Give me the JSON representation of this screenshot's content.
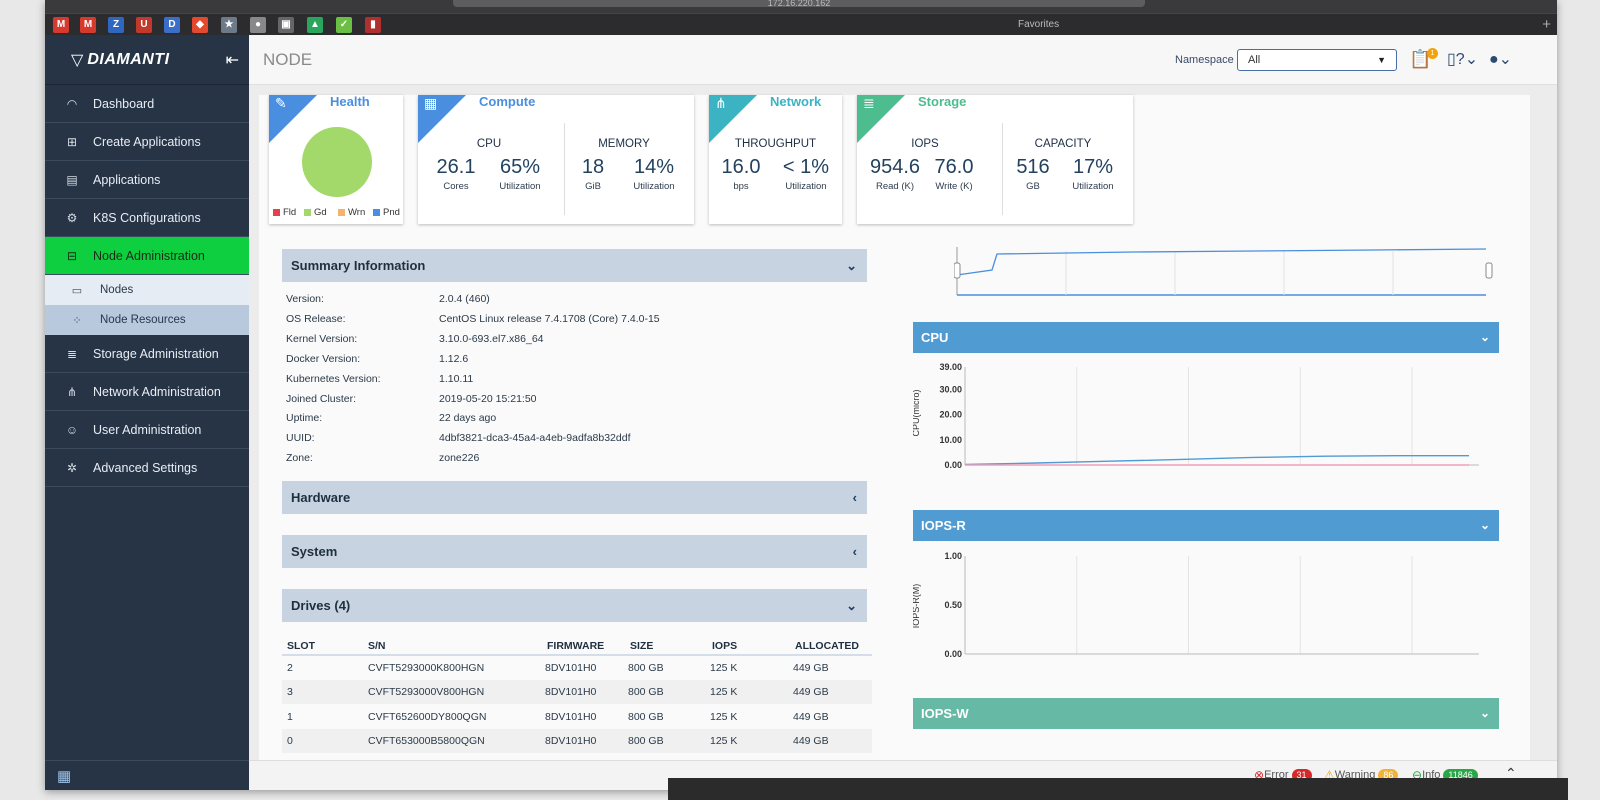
{
  "browser": {
    "url": "172.16.220.162",
    "favorites_label": "Favorites"
  },
  "sidebar": {
    "brand": "DIAMANTI",
    "items": [
      {
        "label": "Dashboard",
        "icon": "dashboard-icon"
      },
      {
        "label": "Create Applications",
        "icon": "plus-square-icon"
      },
      {
        "label": "Applications",
        "icon": "list-icon"
      },
      {
        "label": "K8S Configurations",
        "icon": "gear-icon"
      },
      {
        "label": "Node Administration",
        "icon": "server-icon"
      },
      {
        "label": "Storage Administration",
        "icon": "database-icon"
      },
      {
        "label": "Network Administration",
        "icon": "network-icon"
      },
      {
        "label": "User Administration",
        "icon": "users-icon"
      },
      {
        "label": "Advanced Settings",
        "icon": "cogs-icon"
      }
    ],
    "subitems": [
      {
        "label": "Nodes",
        "icon": "server-icon"
      },
      {
        "label": "Node Resources",
        "icon": "resources-icon"
      }
    ]
  },
  "header": {
    "title": "NODE",
    "namespace_label": "Namespace",
    "namespace_value": "All",
    "notification_count": "1"
  },
  "cards": {
    "health": {
      "title": "Health",
      "legend": [
        "Fld",
        "Gd",
        "Wrn",
        "Pnd"
      ],
      "colors": [
        "#e0434f",
        "#a3d86a",
        "#f4b26a",
        "#4a8fdf"
      ]
    },
    "compute": {
      "title": "Compute",
      "cpu_label": "CPU",
      "cores": "26.1",
      "cores_unit": "Cores",
      "cpu_util": "65%",
      "util_unit": "Utilization",
      "mem_label": "MEMORY",
      "mem": "18",
      "mem_unit": "GiB",
      "mem_util": "14%"
    },
    "network": {
      "title": "Network",
      "tp_label": "THROUGHPUT",
      "tp": "16.0",
      "tp_unit": "bps",
      "tp_util": "< 1%",
      "util_unit": "Utilization"
    },
    "storage": {
      "title": "Storage",
      "iops_label": "IOPS",
      "read": "954.6",
      "read_unit": "Read (K)",
      "write": "76.0",
      "write_unit": "Write (K)",
      "cap_label": "CAPACITY",
      "cap": "516",
      "cap_unit": "GB",
      "cap_util": "17%",
      "util_unit": "Utilization"
    }
  },
  "summary": {
    "title": "Summary Information",
    "rows": [
      {
        "k": "Version:",
        "v": "2.0.4 (460)"
      },
      {
        "k": "OS Release:",
        "v": "CentOS Linux release 7.4.1708 (Core) 7.4.0-15"
      },
      {
        "k": "Kernel Version:",
        "v": "3.10.0-693.el7.x86_64"
      },
      {
        "k": "Docker Version:",
        "v": "1.12.6"
      },
      {
        "k": "Kubernetes Version:",
        "v": "1.10.11"
      },
      {
        "k": "Joined Cluster:",
        "v": "2019-05-20 15:21:50"
      },
      {
        "k": "Uptime:",
        "v": "22 days ago"
      },
      {
        "k": "UUID:",
        "v": "4dbf3821-dca3-45a4-a4eb-9adfa8b32ddf"
      },
      {
        "k": "Zone:",
        "v": "zone226"
      }
    ]
  },
  "sections": {
    "hardware": "Hardware",
    "system": "System",
    "drives": "Drives (4)"
  },
  "drives": {
    "headers": [
      "SLOT",
      "S/N",
      "FIRMWARE",
      "SIZE",
      "IOPS",
      "ALLOCATED"
    ],
    "rows": [
      [
        "2",
        "CVFT5293000K800HGN",
        "8DV101H0",
        "800 GB",
        "125 K",
        "449 GB"
      ],
      [
        "3",
        "CVFT5293000V800HGN",
        "8DV101H0",
        "800 GB",
        "125 K",
        "449 GB"
      ],
      [
        "1",
        "CVFT652600DY800QGN",
        "8DV101H0",
        "800 GB",
        "125 K",
        "449 GB"
      ],
      [
        "0",
        "CVFT653000B5800QGN",
        "8DV101H0",
        "800 GB",
        "125 K",
        "449 GB"
      ]
    ]
  },
  "charts": {
    "cpu": {
      "title": "CPU",
      "ylabel": "CPU(micro)",
      "ticks": [
        "39.00",
        "30.00",
        "20.00",
        "10.00",
        "0.00"
      ],
      "color": "#519bd3"
    },
    "iops_r": {
      "title": "IOPS-R",
      "ylabel": "IOPS-R(M)",
      "ticks": [
        "1.00",
        "0.50",
        "0.00"
      ],
      "color": "#519bd3"
    },
    "iops_w": {
      "title": "IOPS-W",
      "color": "#66b9a5"
    }
  },
  "chart_data": [
    {
      "type": "line",
      "title": "CPU",
      "ylabel": "CPU(micro)",
      "ylim": [
        0,
        39
      ],
      "series": [
        {
          "values": [
            0.2,
            0.8,
            1.5,
            2.2,
            3.0,
            3.5,
            3.7,
            3.7
          ]
        },
        {
          "values": [
            0,
            0,
            0,
            0,
            0,
            0,
            0,
            0
          ]
        }
      ]
    },
    {
      "type": "line",
      "title": "IOPS-R",
      "ylabel": "IOPS-R(M)",
      "ylim": [
        0,
        1
      ],
      "series": [
        {
          "values": []
        }
      ]
    }
  ],
  "status": {
    "error_label": "Error",
    "error_count": "31",
    "warning_label": "Warning",
    "warning_count": "86",
    "info_label": "Info",
    "info_count": "11846"
  }
}
